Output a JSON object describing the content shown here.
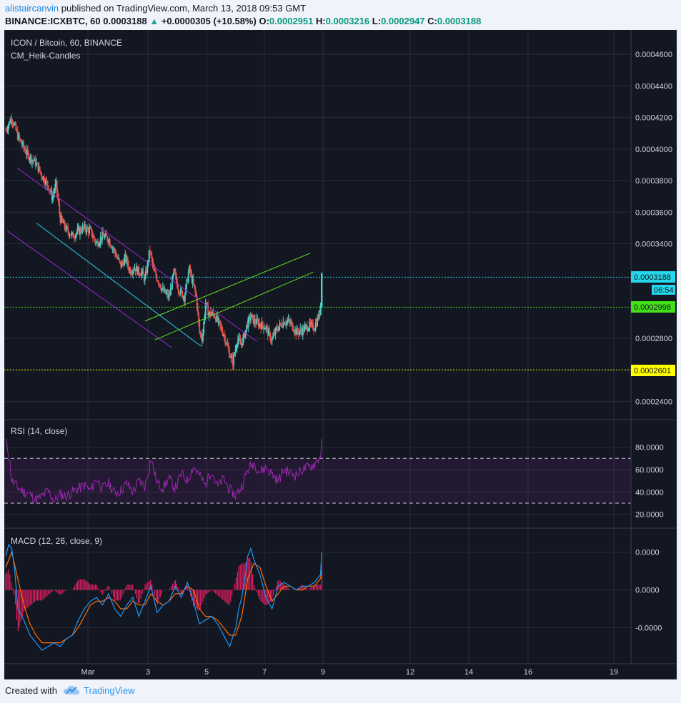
{
  "header": {
    "author": "alistaircanvin",
    "published_text": "published on TradingView.com, March 13, 2018 09:53 GMT",
    "symbol_line": "BINANCE:ICXBTC, 60",
    "last": "0.0003188",
    "change_arrow": "▲",
    "change": "+0.0000305 (+10.58%)",
    "o_label": "O:",
    "o_value": "0.0002951",
    "h_label": "H:",
    "h_value": "0.0003216",
    "l_label": "L:",
    "l_value": "0.0002947",
    "c_label": "C:",
    "c_value": "0.0003188"
  },
  "legend": {
    "title": "ICON / Bitcoin, 60, BINANCE",
    "indicator": "CM_Heik-Candles",
    "rsi": "RSI (14, close)",
    "macd": "MACD (12, 26, close, 9)"
  },
  "price_labels": {
    "last": "0.0003188",
    "countdown": "06:54",
    "green_line": "0.0002998",
    "yellow_line": "0.0002601"
  },
  "footer": {
    "created_with": "Created with",
    "brand": "TradingView"
  },
  "colors": {
    "background": "#131722",
    "up_candle": "#4dd0c4",
    "down_candle": "#e8514d",
    "channel_purple": "#9c27e0",
    "trend_cyan": "#29d4e6",
    "trend_green": "#61e01c",
    "rsi_line": "#9c27b0",
    "macd_line": "#2196f3",
    "signal_line": "#ff6d00",
    "hist": "#e91e63"
  },
  "chart_data": [
    {
      "type": "candlestick",
      "title": "ICON / Bitcoin, 60, BINANCE",
      "x_ticks": [
        "Mar",
        "3",
        "5",
        "7",
        "9",
        "12",
        "14",
        "16",
        "19"
      ],
      "y_ticks": [
        "0.0004600",
        "0.0004400",
        "0.0004200",
        "0.0004000",
        "0.0003800",
        "0.0003600",
        "0.0003400",
        "0.0002800",
        "0.0002400"
      ],
      "ylim": [
        0.000229,
        0.00047
      ],
      "close_path": [
        [
          0.0,
          0.000412
        ],
        [
          1.0,
          0.00042
        ],
        [
          2.0,
          0.000408
        ],
        [
          3.5,
          0.000397
        ],
        [
          5.0,
          0.000391
        ],
        [
          6.0,
          0.000383
        ],
        [
          7.0,
          0.000377
        ],
        [
          7.7,
          0.000369
        ],
        [
          8.3,
          0.000378
        ],
        [
          9.0,
          0.000356
        ],
        [
          10.0,
          0.000349
        ],
        [
          11.0,
          0.000345
        ],
        [
          12.0,
          0.000348
        ],
        [
          13.0,
          0.00035
        ],
        [
          14.0,
          0.000348
        ],
        [
          15.0,
          0.00034
        ],
        [
          16.0,
          0.000345
        ],
        [
          17.0,
          0.000343
        ],
        [
          18.0,
          0.000335
        ],
        [
          19.0,
          0.000326
        ],
        [
          19.8,
          0.000331
        ],
        [
          20.5,
          0.000323
        ],
        [
          21.3,
          0.000325
        ],
        [
          22.0,
          0.000322
        ],
        [
          22.5,
          0.000322
        ],
        [
          23.0,
          0.000317
        ],
        [
          23.8,
          0.000336
        ],
        [
          24.5,
          0.000322
        ],
        [
          25.3,
          0.000316
        ],
        [
          26.0,
          0.00031
        ],
        [
          27.0,
          0.000306
        ],
        [
          27.8,
          0.000322
        ],
        [
          28.5,
          0.000312
        ],
        [
          29.5,
          0.000306
        ],
        [
          30.3,
          0.000324
        ],
        [
          31.0,
          0.000314
        ],
        [
          31.5,
          0.000306
        ],
        [
          32.0,
          0.000284
        ],
        [
          32.5,
          0.00028
        ],
        [
          33.0,
          0.000302
        ],
        [
          33.5,
          0.000296
        ],
        [
          34.5,
          0.000295
        ],
        [
          35.0,
          0.000291
        ],
        [
          36.0,
          0.000283
        ],
        [
          37.0,
          0.00027
        ],
        [
          37.5,
          0.000265
        ],
        [
          38.3,
          0.00028
        ],
        [
          38.8,
          0.000276
        ],
        [
          39.3,
          0.00028
        ],
        [
          39.8,
          0.000288
        ],
        [
          40.5,
          0.000294
        ],
        [
          41.0,
          0.000291
        ],
        [
          42.0,
          0.000289
        ],
        [
          43.0,
          0.000287
        ],
        [
          43.5,
          0.000282
        ],
        [
          44.0,
          0.000279
        ],
        [
          44.5,
          0.000284
        ],
        [
          45.0,
          0.000287
        ],
        [
          46.0,
          0.000291
        ],
        [
          47.0,
          0.00029
        ],
        [
          48.0,
          0.000284
        ],
        [
          49.0,
          0.000285
        ],
        [
          50.0,
          0.000288
        ],
        [
          51.0,
          0.000287
        ],
        [
          51.5,
          0.000292
        ],
        [
          52.0,
          0.000298
        ],
        [
          52.2,
          0.000319
        ]
      ],
      "horizontal_levels": [
        0.0003188,
        0.0002998,
        0.0002601
      ]
    },
    {
      "type": "line",
      "title": "RSI (14, close)",
      "y_ticks": [
        "80.0000",
        "60.0000",
        "40.0000",
        "20.0000"
      ],
      "ylim": [
        9,
        102
      ],
      "bands": [
        70,
        30
      ],
      "series": [
        {
          "values": [
            [
              0.0,
              86
            ],
            [
              0.5,
              75
            ],
            [
              1.0,
              50
            ],
            [
              2,
              44
            ],
            [
              3,
              40
            ],
            [
              4,
              38
            ],
            [
              5,
              33
            ],
            [
              6,
              36
            ],
            [
              7,
              41
            ],
            [
              8,
              32
            ],
            [
              9,
              38
            ],
            [
              10,
              36
            ],
            [
              11,
              40
            ],
            [
              12,
              43
            ],
            [
              13,
              46
            ],
            [
              14,
              41
            ],
            [
              15,
              52
            ],
            [
              16,
              43
            ],
            [
              17,
              48
            ],
            [
              18,
              39
            ],
            [
              19,
              41
            ],
            [
              20,
              48
            ],
            [
              21,
              40
            ],
            [
              22,
              50
            ],
            [
              23,
              45
            ],
            [
              24,
              70
            ],
            [
              25,
              48
            ],
            [
              26,
              44
            ],
            [
              27,
              52
            ],
            [
              28,
              43
            ],
            [
              29,
              56
            ],
            [
              30,
              50
            ],
            [
              31,
              63
            ],
            [
              32,
              55
            ],
            [
              33,
              46
            ],
            [
              34,
              60
            ],
            [
              35,
              44
            ],
            [
              36,
              52
            ],
            [
              37,
              42
            ],
            [
              38,
              37
            ],
            [
              39,
              45
            ],
            [
              40,
              60
            ],
            [
              41,
              66
            ],
            [
              42,
              58
            ],
            [
              43,
              62
            ],
            [
              44,
              56
            ],
            [
              45,
              50
            ],
            [
              46,
              60
            ],
            [
              47,
              57
            ],
            [
              48,
              55
            ],
            [
              49,
              60
            ],
            [
              50,
              62
            ],
            [
              51,
              65
            ],
            [
              52,
              72
            ],
            [
              52.2,
              84
            ]
          ]
        }
      ]
    },
    {
      "type": "line",
      "title": "MACD (12, 26, close, 9)",
      "y_ticks": [
        "0.0000",
        "0.0000",
        "-0.0000"
      ],
      "ylim": [
        -1.9,
        1.6
      ],
      "series": [
        {
          "name": "MACD",
          "values": [
            [
              0.0,
              0.9
            ],
            [
              0.5,
              1.2
            ],
            [
              1.0,
              1.1
            ],
            [
              1.5,
              0.5
            ],
            [
              2.0,
              -0.5
            ],
            [
              3.0,
              -0.8
            ],
            [
              4.0,
              -1.2
            ],
            [
              5.0,
              -1.4
            ],
            [
              6.0,
              -1.6
            ],
            [
              7.0,
              -1.5
            ],
            [
              8.0,
              -1.4
            ],
            [
              9.0,
              -1.5
            ],
            [
              10.0,
              -1.3
            ],
            [
              11.0,
              -1.2
            ],
            [
              12.0,
              -0.8
            ],
            [
              13.0,
              -0.5
            ],
            [
              14.0,
              -0.3
            ],
            [
              15.0,
              -0.2
            ],
            [
              16.0,
              -0.4
            ],
            [
              17.0,
              -0.1
            ],
            [
              18.0,
              -0.5
            ],
            [
              19.0,
              -0.7
            ],
            [
              20.0,
              -0.4
            ],
            [
              21.0,
              -0.2
            ],
            [
              22.0,
              -0.7
            ],
            [
              23.0,
              -0.3
            ],
            [
              24.0,
              0.1
            ],
            [
              25.0,
              -0.6
            ],
            [
              26.0,
              -0.4
            ],
            [
              27.0,
              -0.3
            ],
            [
              28.0,
              0.1
            ],
            [
              29.0,
              -0.2
            ],
            [
              30.0,
              0.2
            ],
            [
              31.0,
              -0.3
            ],
            [
              32.0,
              -0.9
            ],
            [
              33.0,
              -0.8
            ],
            [
              34.0,
              -0.7
            ],
            [
              35.0,
              -0.9
            ],
            [
              36.0,
              -1.2
            ],
            [
              37.0,
              -1.5
            ],
            [
              38.0,
              -1.0
            ],
            [
              38.5,
              -0.5
            ],
            [
              39.0,
              -0.2
            ],
            [
              39.5,
              0.3
            ],
            [
              40.0,
              0.9
            ],
            [
              40.5,
              1.1
            ],
            [
              41.0,
              0.8
            ],
            [
              42.0,
              0.4
            ],
            [
              43.0,
              -0.2
            ],
            [
              44.0,
              -0.5
            ],
            [
              45.0,
              0.1
            ],
            [
              46.0,
              0.2
            ],
            [
              47.0,
              0.1
            ],
            [
              48.0,
              0.0
            ],
            [
              49.0,
              0.1
            ],
            [
              50.0,
              0.1
            ],
            [
              51.0,
              0.2
            ],
            [
              52.0,
              0.4
            ],
            [
              52.2,
              1.0
            ]
          ]
        },
        {
          "name": "Signal",
          "values": [
            [
              0.0,
              0.6
            ],
            [
              1.0,
              1.0
            ],
            [
              2.0,
              0.3
            ],
            [
              3.0,
              -0.4
            ],
            [
              4.0,
              -0.9
            ],
            [
              5.0,
              -1.2
            ],
            [
              6.0,
              -1.4
            ],
            [
              7.0,
              -1.4
            ],
            [
              8.0,
              -1.4
            ],
            [
              9.0,
              -1.4
            ],
            [
              10.0,
              -1.3
            ],
            [
              11.0,
              -1.2
            ],
            [
              12.0,
              -1.0
            ],
            [
              13.0,
              -0.7
            ],
            [
              14.0,
              -0.4
            ],
            [
              15.0,
              -0.3
            ],
            [
              16.0,
              -0.3
            ],
            [
              17.0,
              -0.2
            ],
            [
              18.0,
              -0.3
            ],
            [
              19.0,
              -0.5
            ],
            [
              20.0,
              -0.5
            ],
            [
              21.0,
              -0.3
            ],
            [
              22.0,
              -0.4
            ],
            [
              23.0,
              -0.4
            ],
            [
              24.0,
              -0.1
            ],
            [
              25.0,
              -0.3
            ],
            [
              26.0,
              -0.4
            ],
            [
              27.0,
              -0.3
            ],
            [
              28.0,
              -0.1
            ],
            [
              29.0,
              -0.1
            ],
            [
              30.0,
              0.1
            ],
            [
              31.0,
              0.0
            ],
            [
              32.0,
              -0.5
            ],
            [
              33.0,
              -0.7
            ],
            [
              34.0,
              -0.7
            ],
            [
              35.0,
              -0.8
            ],
            [
              36.0,
              -1.0
            ],
            [
              37.0,
              -1.2
            ],
            [
              38.0,
              -1.2
            ],
            [
              39.0,
              -0.7
            ],
            [
              40.0,
              0.3
            ],
            [
              41.0,
              0.7
            ],
            [
              42.0,
              0.6
            ],
            [
              43.0,
              0.1
            ],
            [
              44.0,
              -0.3
            ],
            [
              45.0,
              -0.1
            ],
            [
              46.0,
              0.1
            ],
            [
              47.0,
              0.1
            ],
            [
              48.0,
              0.0
            ],
            [
              49.0,
              0.0
            ],
            [
              50.0,
              0.1
            ],
            [
              51.0,
              0.1
            ],
            [
              52.0,
              0.3
            ],
            [
              52.2,
              0.5
            ]
          ]
        }
      ]
    }
  ]
}
